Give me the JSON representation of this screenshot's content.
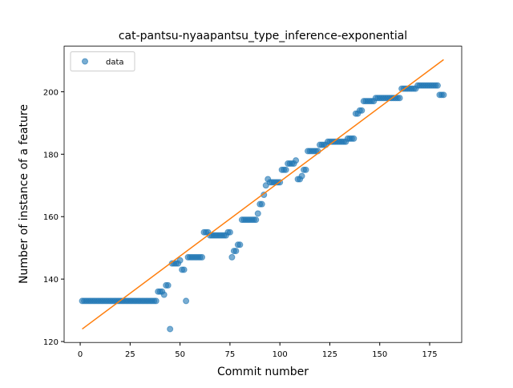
{
  "chart_data": {
    "type": "scatter",
    "title": "cat-pantsu-nyaapantsu_type_inference-exponential",
    "xlabel": "Commit number",
    "ylabel": "Number of instance of a feature",
    "xlim": [
      -8.05,
      191.05
    ],
    "ylim": [
      119.7,
      214.6
    ],
    "xticks": [
      0,
      25,
      50,
      75,
      100,
      125,
      150,
      175
    ],
    "yticks": [
      120,
      140,
      160,
      180,
      200
    ],
    "legend": "upper left",
    "series": [
      {
        "name": "data",
        "type": "scatter",
        "color": "#1f77b4",
        "x": [
          1,
          2,
          3,
          4,
          5,
          6,
          7,
          8,
          9,
          10,
          11,
          12,
          13,
          14,
          15,
          16,
          17,
          18,
          19,
          20,
          21,
          22,
          23,
          24,
          25,
          26,
          27,
          28,
          29,
          30,
          31,
          32,
          33,
          34,
          35,
          36,
          37,
          38,
          39,
          40,
          41,
          42,
          43,
          44,
          45,
          46,
          47,
          48,
          49,
          50,
          51,
          52,
          53,
          54,
          55,
          56,
          57,
          58,
          59,
          60,
          61,
          62,
          63,
          64,
          65,
          66,
          67,
          68,
          69,
          70,
          71,
          72,
          73,
          74,
          75,
          76,
          77,
          78,
          79,
          80,
          81,
          82,
          83,
          84,
          85,
          86,
          87,
          88,
          89,
          90,
          91,
          92,
          93,
          94,
          95,
          96,
          97,
          98,
          99,
          100,
          101,
          102,
          103,
          104,
          105,
          106,
          107,
          108,
          109,
          110,
          111,
          112,
          113,
          114,
          115,
          116,
          117,
          118,
          119,
          120,
          121,
          122,
          123,
          124,
          125,
          126,
          127,
          128,
          129,
          130,
          131,
          132,
          133,
          134,
          135,
          136,
          137,
          138,
          139,
          140,
          141,
          142,
          143,
          144,
          145,
          146,
          147,
          148,
          149,
          150,
          151,
          152,
          153,
          154,
          155,
          156,
          157,
          158,
          159,
          160,
          161,
          162,
          163,
          164,
          165,
          166,
          167,
          168,
          169,
          170,
          171,
          172,
          173,
          174,
          175,
          176,
          177,
          178,
          179,
          180,
          181,
          182
        ],
        "values": [
          133,
          133,
          133,
          133,
          133,
          133,
          133,
          133,
          133,
          133,
          133,
          133,
          133,
          133,
          133,
          133,
          133,
          133,
          133,
          133,
          133,
          133,
          133,
          133,
          133,
          133,
          133,
          133,
          133,
          133,
          133,
          133,
          133,
          133,
          133,
          133,
          133,
          133,
          136,
          136,
          136,
          135,
          138,
          138,
          124,
          145,
          145,
          145,
          145,
          146,
          143,
          143,
          133,
          147,
          147,
          147,
          147,
          147,
          147,
          147,
          147,
          155,
          155,
          155,
          154,
          154,
          154,
          154,
          154,
          154,
          154,
          154,
          154,
          155,
          155,
          147,
          149,
          149,
          151,
          151,
          159,
          159,
          159,
          159,
          159,
          159,
          159,
          159,
          161,
          164,
          164,
          167,
          170,
          172,
          171,
          171,
          171,
          171,
          171,
          171,
          175,
          175,
          175,
          177,
          177,
          177,
          177,
          178,
          172,
          172,
          173,
          175,
          175,
          181,
          181,
          181,
          181,
          181,
          181,
          183,
          183,
          183,
          183,
          184,
          184,
          184,
          184,
          184,
          184,
          184,
          184,
          184,
          184,
          185,
          185,
          185,
          185,
          193,
          193,
          194,
          194,
          197,
          197,
          197,
          197,
          197,
          197,
          198,
          198,
          198,
          198,
          198,
          198,
          198,
          198,
          198,
          198,
          198,
          198,
          198,
          201,
          201,
          201,
          201,
          201,
          201,
          201,
          201,
          202,
          202,
          202,
          202,
          202,
          202,
          202,
          202,
          202,
          202,
          202,
          199,
          199,
          199
        ]
      },
      {
        "type": "line",
        "color": "#ff7f0e",
        "x": [
          1,
          182
        ],
        "values": [
          124,
          210.3
        ]
      }
    ]
  }
}
